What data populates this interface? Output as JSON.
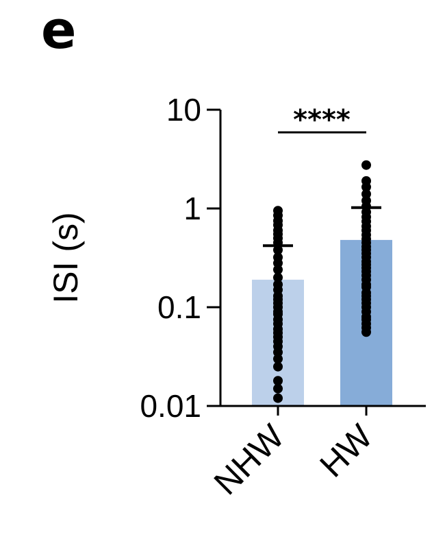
{
  "panel_label": "e",
  "chart_data": {
    "type": "bar",
    "ylabel": "ISI (s)",
    "yscale": "log",
    "ylim": [
      0.01,
      10
    ],
    "yticks": [
      {
        "value": 10,
        "label": "10"
      },
      {
        "value": 1,
        "label": "1"
      },
      {
        "value": 0.1,
        "label": "0.1"
      },
      {
        "value": 0.01,
        "label": "0.01"
      }
    ],
    "categories": [
      "NHW",
      "HW"
    ],
    "bar_colors": [
      "#bcd0ea",
      "#86acd8"
    ],
    "point_color": "#000000",
    "bars": [
      {
        "category": "NHW",
        "mean": 0.19,
        "error_upper": 0.42,
        "points": [
          0.95,
          0.85,
          0.75,
          0.68,
          0.6,
          0.55,
          0.5,
          0.45,
          0.38,
          0.32,
          0.28,
          0.24,
          0.2,
          0.17,
          0.15,
          0.13,
          0.12,
          0.11,
          0.1,
          0.09,
          0.085,
          0.075,
          0.068,
          0.06,
          0.055,
          0.05,
          0.045,
          0.04,
          0.035,
          0.03,
          0.025,
          0.018,
          0.015,
          0.012
        ]
      },
      {
        "category": "HW",
        "mean": 0.48,
        "error_upper": 1.02,
        "points": [
          2.75,
          1.9,
          1.65,
          1.4,
          1.2,
          1.05,
          0.92,
          0.82,
          0.74,
          0.66,
          0.6,
          0.54,
          0.49,
          0.45,
          0.41,
          0.38,
          0.35,
          0.32,
          0.29,
          0.27,
          0.25,
          0.23,
          0.21,
          0.19,
          0.17,
          0.16,
          0.14,
          0.13,
          0.12,
          0.11,
          0.1,
          0.09,
          0.08,
          0.075,
          0.068,
          0.062,
          0.056
        ]
      }
    ],
    "significance": {
      "between": [
        "NHW",
        "HW"
      ],
      "label": "****"
    },
    "grid": false,
    "legend": "none"
  }
}
